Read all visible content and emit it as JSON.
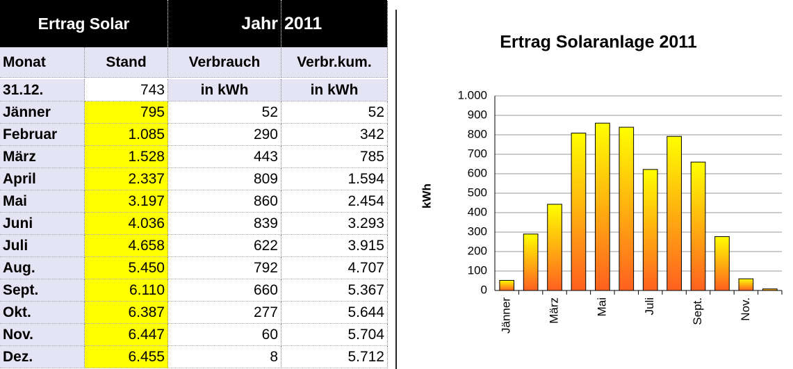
{
  "table": {
    "header": [
      "Ertrag Solar",
      "Jahr",
      "2011"
    ],
    "columns": [
      "Monat",
      "Stand",
      "Verbrauch",
      "Verbr.kum."
    ],
    "rows": [
      [
        "31.12.",
        "743",
        "in kWh",
        "in kWh"
      ],
      [
        "Jänner",
        "795",
        "52",
        "52"
      ],
      [
        "Februar",
        "1.085",
        "290",
        "342"
      ],
      [
        "März",
        "1.528",
        "443",
        "785"
      ],
      [
        "April",
        "2.337",
        "809",
        "1.594"
      ],
      [
        "Mai",
        "3.197",
        "860",
        "2.454"
      ],
      [
        "Juni",
        "4.036",
        "839",
        "3.293"
      ],
      [
        "Juli",
        "4.658",
        "622",
        "3.915"
      ],
      [
        "Aug.",
        "5.450",
        "792",
        "4.707"
      ],
      [
        "Sept.",
        "6.110",
        "660",
        "5.367"
      ],
      [
        "Okt.",
        "6.387",
        "277",
        "5.644"
      ],
      [
        "Nov.",
        "6.447",
        "60",
        "5.704"
      ],
      [
        "Dez.",
        "6.455",
        "8",
        "5.712"
      ]
    ]
  },
  "chart_data": {
    "type": "bar",
    "title": "Ertrag Solaranlage 2011",
    "y_label": "kWh",
    "categories": [
      "Jänner",
      null,
      "März",
      null,
      "Mai",
      null,
      "Juli",
      null,
      "Sept.",
      null,
      "Nov.",
      null
    ],
    "values": [
      52,
      290,
      443,
      809,
      860,
      839,
      622,
      792,
      660,
      277,
      60,
      8
    ],
    "color_top": "#ffff00",
    "color_bottom": "#ff6020",
    "ylim": [
      0,
      1000
    ],
    "yticks": [
      0,
      100,
      200,
      300,
      400,
      500,
      600,
      700,
      800,
      900,
      {
        "value": 1000,
        "label": "1.000"
      }
    ],
    "grid": true
  }
}
